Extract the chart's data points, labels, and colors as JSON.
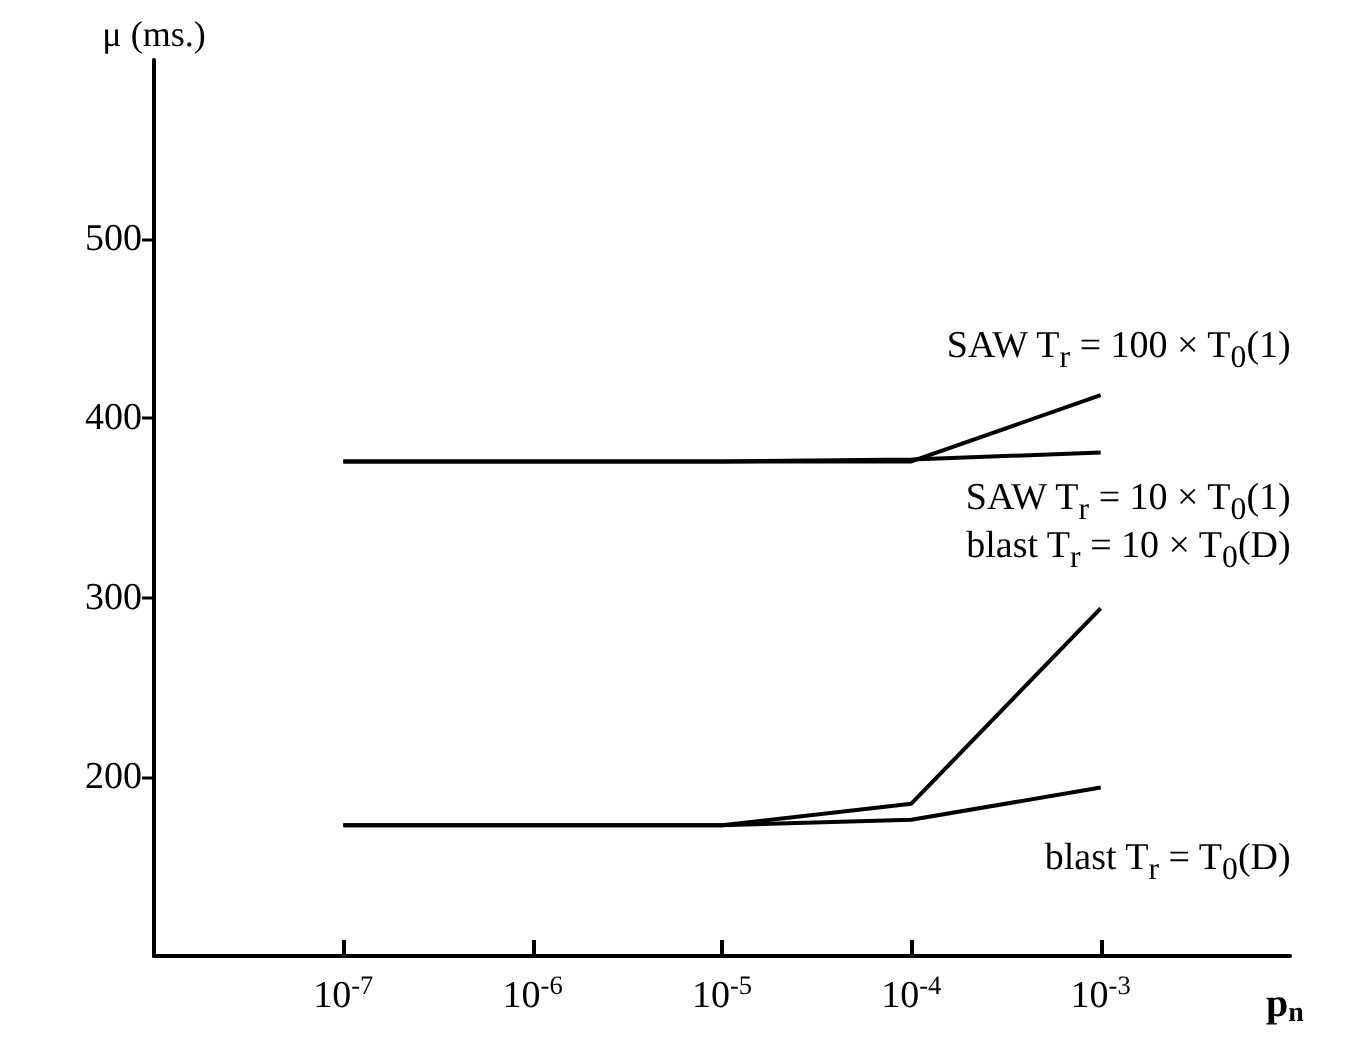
{
  "chart_data": {
    "type": "line",
    "xlabel": "p$_{n}$",
    "ylabel": "μ (ms.)",
    "log": "x",
    "x": [
      1e-07,
      1e-06,
      1e-05,
      0.0001,
      0.001
    ],
    "series": [
      {
        "name": "SAW T$_{r}$ = 100 × T$_{0}$(1)",
        "color": "#000000",
        "values": [
          376,
          376,
          376,
          376,
          413
        ]
      },
      {
        "name": "SAW T$_{r}$ = 10 × T$_{0}$(1)",
        "color": "#000000",
        "values": [
          376,
          376,
          376,
          377,
          381
        ]
      },
      {
        "name": "blast T$_{r}$ = 10 × T$_{0}$(D)",
        "color": "#000000",
        "values": [
          173,
          173,
          173,
          185,
          294
        ]
      },
      {
        "name": "blast T$_{r}$ = T$_{0}$(D)",
        "color": "#000000",
        "values": [
          173,
          173,
          173,
          176,
          194
        ]
      }
    ],
    "xlim": [
      1e-08,
      0.01
    ],
    "xticks": [
      {
        "value": 1e-07,
        "label": "10$^{-7}$"
      },
      {
        "value": 1e-06,
        "label": "10$^{-6}$"
      },
      {
        "value": 1e-05,
        "label": "10$^{-5}$"
      },
      {
        "value": 0.0001,
        "label": "10$^{-4}$"
      },
      {
        "value": 0.001,
        "label": "10$^{-3}$"
      }
    ],
    "ylim": [
      100,
      600
    ],
    "yticks": [
      200,
      300,
      400,
      500
    ],
    "grid": false,
    "marker": "none",
    "line_style": "solid"
  }
}
